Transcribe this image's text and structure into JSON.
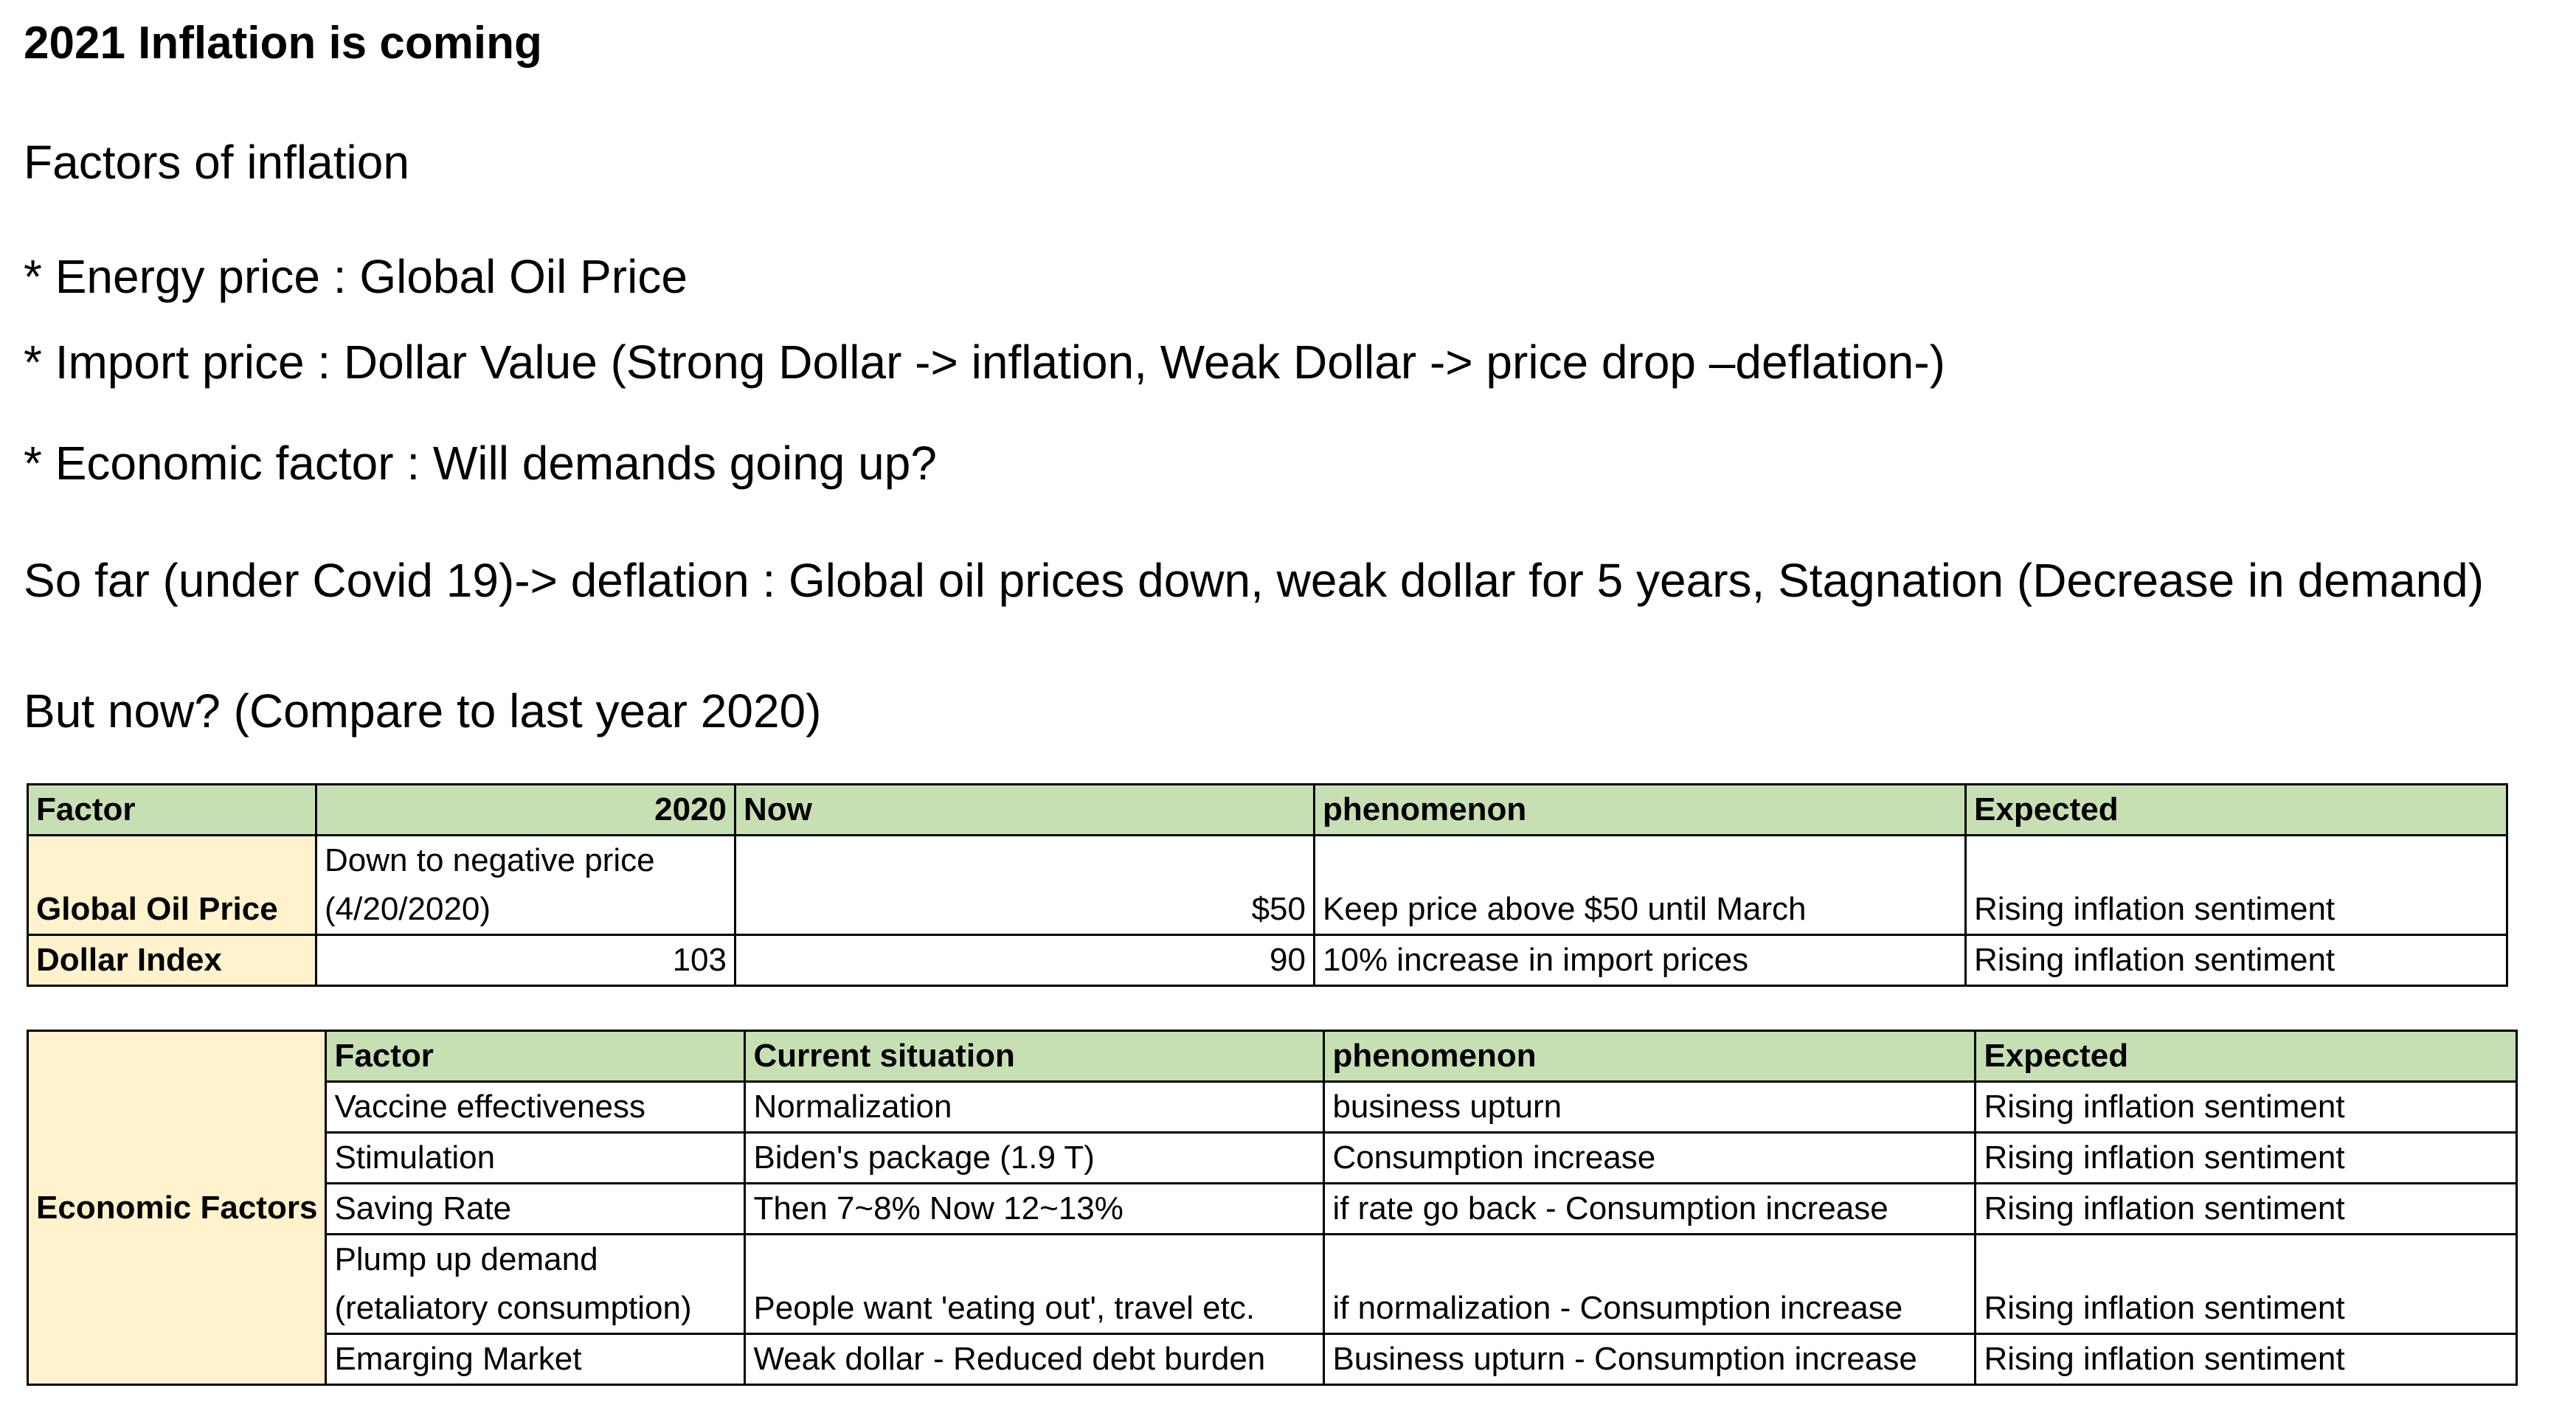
{
  "title": "2021 Inflation is coming",
  "factors_heading": "Factors of inflation",
  "bullets": [
    "* Energy price : Global Oil Price",
    "* Import price : Dollar Value (Strong Dollar -> inflation, Weak Dollar -> price drop –deflation-)",
    "* Economic factor : Will demands going up?"
  ],
  "so_far": "So far (under Covid 19)-> deflation : Global oil prices down, weak dollar for 5 years, Stagnation (Decrease in demand)",
  "but_now": "But now? (Compare to last year 2020)",
  "table1": {
    "headers": [
      "Factor",
      "2020",
      "Now",
      "phenomenon",
      "Expected"
    ],
    "rows": [
      {
        "factor": "Global Oil Price",
        "y2020_line1": "Down to negative price",
        "y2020_line2": "(4/20/2020)",
        "now": "$50",
        "phenomenon": "Keep price above $50 until March",
        "expected": "Rising inflation sentiment"
      },
      {
        "factor": "Dollar Index",
        "y2020": "103",
        "now": "90",
        "phenomenon": "10% increase in import prices",
        "expected": "Rising inflation sentiment"
      }
    ]
  },
  "table2": {
    "group_label": "Economic Factors",
    "headers": [
      "Factor",
      "Current situation",
      "phenomenon",
      "Expected"
    ],
    "rows": [
      {
        "factor": "Vaccine effectiveness",
        "situation": "Normalization",
        "phenomenon": "business upturn",
        "expected": "Rising inflation sentiment"
      },
      {
        "factor": "Stimulation",
        "situation": "Biden's package (1.9 T)",
        "phenomenon": "Consumption increase",
        "expected": "Rising inflation sentiment"
      },
      {
        "factor": "Saving Rate",
        "situation": "Then 7~8% Now 12~13%",
        "phenomenon": "if rate go back - Consumption increase",
        "expected": "Rising inflation sentiment"
      },
      {
        "factor_line1": "Plump up demand",
        "factor_line2": "(retaliatory consumption)",
        "situation": "People want 'eating out', travel etc.",
        "phenomenon": "if normalization - Consumption increase",
        "expected": "Rising inflation sentiment"
      },
      {
        "factor": "Emarging Market",
        "situation": "Weak dollar - Reduced debt burden",
        "phenomenon": "Business upturn - Consumption increase",
        "expected": "Rising inflation sentiment"
      }
    ]
  }
}
